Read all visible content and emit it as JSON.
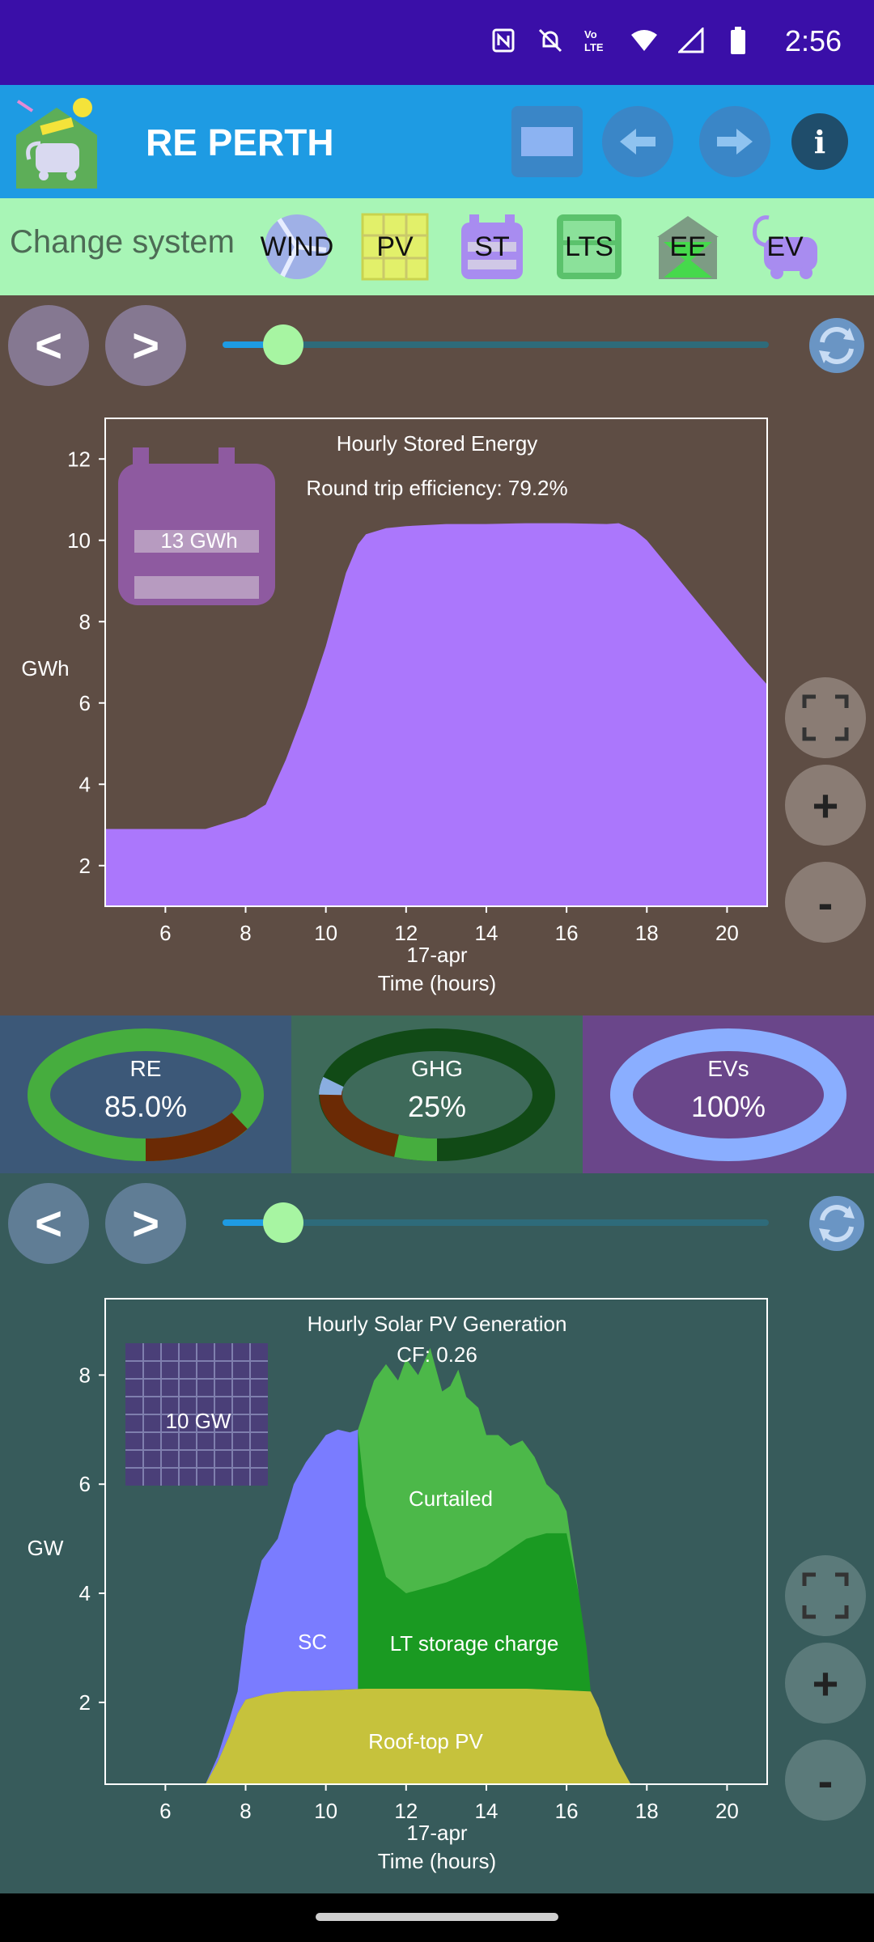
{
  "status": {
    "time": "2:56",
    "icons": [
      "nfc-icon",
      "mute-icon",
      "volte-icon",
      "wifi-icon",
      "signal-icon",
      "battery-icon"
    ]
  },
  "appbar": {
    "title": "RE PERTH"
  },
  "sysbar": {
    "label": "Change system",
    "items": [
      {
        "label": "WIND"
      },
      {
        "label": "PV"
      },
      {
        "label": "ST"
      },
      {
        "label": "LTS"
      },
      {
        "label": "EE"
      },
      {
        "label": "EV"
      }
    ]
  },
  "nav": {
    "prev": "<",
    "next": ">"
  },
  "controls": {
    "plus": "+",
    "minus": "-"
  },
  "metrics": {
    "re": {
      "label": "RE",
      "value": "85.0%"
    },
    "ghg": {
      "label": "GHG",
      "value": "25%"
    },
    "evs": {
      "label": "EVs",
      "value": "100%"
    }
  },
  "colors": {
    "statusbar": "#3a0fa8",
    "appbar": "#1e9be3",
    "sysbar": "#a8f5b6",
    "storage_fill": "#ab77fc",
    "sc": "#7a7cff",
    "curtailed": "#4cb849",
    "lt_charge": "#1a9a22",
    "rooftop": "#c6c23c"
  },
  "chart_data": [
    {
      "type": "area",
      "title": "Hourly Stored Energy",
      "annotation": "Round trip efficiency: 79.2%",
      "badge": "13 GWh",
      "ylabel": "GWh",
      "xlabel": "Time (hours)",
      "date_label": "17-apr",
      "xlim": [
        4.5,
        21
      ],
      "ylim": [
        1,
        13
      ],
      "xticks": [
        6,
        8,
        10,
        12,
        14,
        16,
        18,
        20
      ],
      "yticks": [
        2,
        4,
        6,
        8,
        10,
        12
      ],
      "x": [
        4.5,
        5,
        6,
        7,
        7.5,
        8,
        8.5,
        9,
        9.5,
        10,
        10.5,
        10.8,
        11,
        11.5,
        12,
        13,
        14,
        15,
        16,
        17,
        17.3,
        17.7,
        18,
        18.5,
        19,
        19.5,
        20,
        20.5,
        21
      ],
      "values": [
        2.9,
        2.9,
        2.9,
        2.9,
        3.05,
        3.2,
        3.5,
        4.6,
        5.9,
        7.4,
        9.2,
        9.9,
        10.15,
        10.3,
        10.35,
        10.4,
        10.4,
        10.42,
        10.42,
        10.4,
        10.42,
        10.25,
        10.0,
        9.4,
        8.8,
        8.2,
        7.6,
        7.0,
        6.45
      ]
    },
    {
      "type": "area",
      "title": "Hourly Solar PV Generation",
      "annotation": "CF: 0.26",
      "badge": "10 GW",
      "ylabel": "GW",
      "xlabel": "Time (hours)",
      "date_label": "17-apr",
      "xlim": [
        4.5,
        21
      ],
      "ylim": [
        0.5,
        9.4
      ],
      "xticks": [
        6,
        8,
        10,
        12,
        14,
        16,
        18,
        20
      ],
      "yticks": [
        2,
        4,
        6,
        8
      ],
      "series": [
        {
          "name": "Roof-top PV",
          "x": [
            7.0,
            7.3,
            7.6,
            7.8,
            8.0,
            8.5,
            9,
            10,
            11,
            12,
            13,
            14,
            15,
            16,
            16.6,
            16.8,
            17.0,
            17.3,
            17.6
          ],
          "values": [
            0.5,
            0.9,
            1.4,
            1.8,
            2.05,
            2.15,
            2.2,
            2.22,
            2.25,
            2.25,
            2.25,
            2.25,
            2.25,
            2.22,
            2.2,
            1.9,
            1.4,
            0.9,
            0.5
          ]
        },
        {
          "name": "SC",
          "x": [
            7.0,
            7.3,
            7.6,
            7.8,
            8.0,
            8.4,
            8.8,
            9.2,
            9.5,
            10.0,
            10.3,
            10.6,
            10.8
          ],
          "values": [
            0.5,
            1.0,
            1.7,
            2.2,
            3.4,
            4.6,
            5.0,
            6.0,
            6.4,
            6.9,
            7.0,
            6.95,
            7.0
          ]
        },
        {
          "name": "LT storage charge",
          "x": [
            10.8,
            11.0,
            11.5,
            12,
            13,
            14,
            15,
            15.5,
            16,
            16.3,
            16.5,
            16.6
          ],
          "values": [
            7.0,
            5.6,
            4.3,
            4.0,
            4.2,
            4.5,
            5.0,
            5.1,
            5.1,
            4.0,
            3.0,
            2.2
          ]
        },
        {
          "name": "Curtailed",
          "x": [
            10.8,
            11.2,
            11.5,
            11.8,
            12.0,
            12.3,
            12.6,
            12.9,
            13.1,
            13.3,
            13.5,
            13.8,
            14.0,
            14.3,
            14.6,
            14.9,
            15.2,
            15.5,
            15.8,
            16.0,
            16.3
          ],
          "values": [
            7.0,
            7.9,
            8.2,
            7.9,
            8.3,
            8.0,
            8.5,
            7.7,
            7.8,
            8.1,
            7.6,
            7.4,
            6.9,
            6.9,
            6.7,
            6.8,
            6.5,
            6.0,
            5.8,
            5.5,
            4.0
          ]
        }
      ]
    }
  ]
}
